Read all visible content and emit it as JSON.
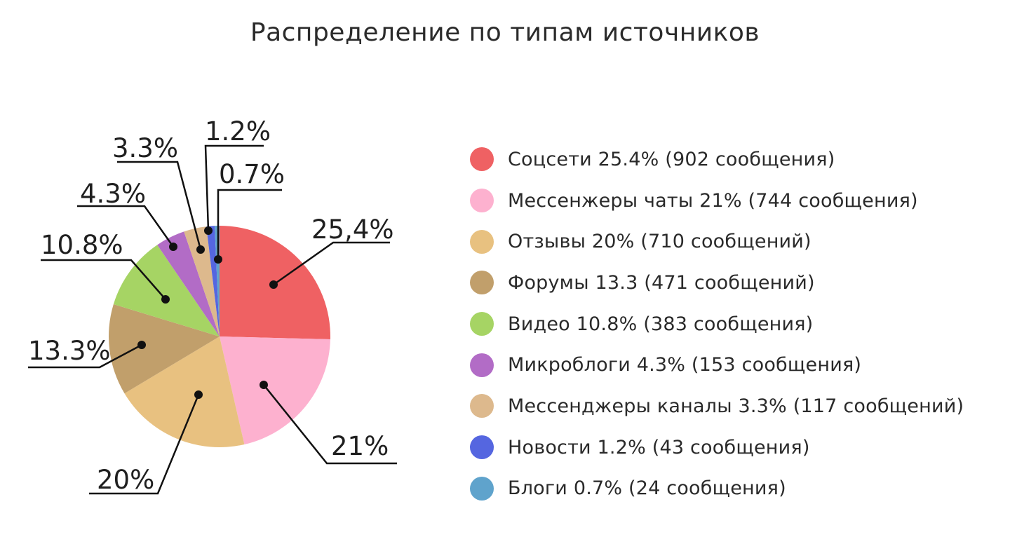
{
  "title": "Распределение по типам источников",
  "chart_data": {
    "type": "pie",
    "title": "Распределение по типам источников",
    "slices": [
      {
        "name": "Соцсети",
        "value": 25.4,
        "count": 902,
        "color": "#ef6163",
        "data_label": "25,4%",
        "legend": "Соцсети 25.4%  (902 сообщения)"
      },
      {
        "name": "Мессенжеры чаты",
        "value": 21,
        "count": 744,
        "color": "#fdb1cf",
        "data_label": "21%",
        "legend": "Мессенжеры чаты 21% (744 сообщения)"
      },
      {
        "name": "Отзывы",
        "value": 20,
        "count": 710,
        "color": "#e8c180",
        "data_label": "20%",
        "legend": "Отзывы 20% (710 сообщений)"
      },
      {
        "name": "Форумы",
        "value": 13.3,
        "count": 471,
        "color": "#c19f6b",
        "data_label": "13.3%",
        "legend": "Форумы 13.3 (471 сообщений)"
      },
      {
        "name": "Видео",
        "value": 10.8,
        "count": 383,
        "color": "#a6d464",
        "data_label": "10.8%",
        "legend": "Видео 10.8% (383 сообщения)"
      },
      {
        "name": "Микроблоги",
        "value": 4.3,
        "count": 153,
        "color": "#b26cc6",
        "data_label": "4.3%",
        "legend": "Микроблоги 4.3% (153 сообщения)"
      },
      {
        "name": "Мессенджеры каналы",
        "value": 3.3,
        "count": 117,
        "color": "#ddb98d",
        "data_label": "3.3%",
        "legend": "Мессенджеры каналы 3.3% (117 сообщений)"
      },
      {
        "name": "Новости",
        "value": 1.2,
        "count": 43,
        "color": "#5566e0",
        "data_label": "1.2%",
        "legend": "Новости 1.2% (43 сообщения)"
      },
      {
        "name": "Блоги",
        "value": 0.7,
        "count": 24,
        "color": "#5fa3cc",
        "data_label": "0.7%",
        "legend": "Блоги 0.7% (24 сообщения)"
      }
    ],
    "legend_position": "right"
  }
}
